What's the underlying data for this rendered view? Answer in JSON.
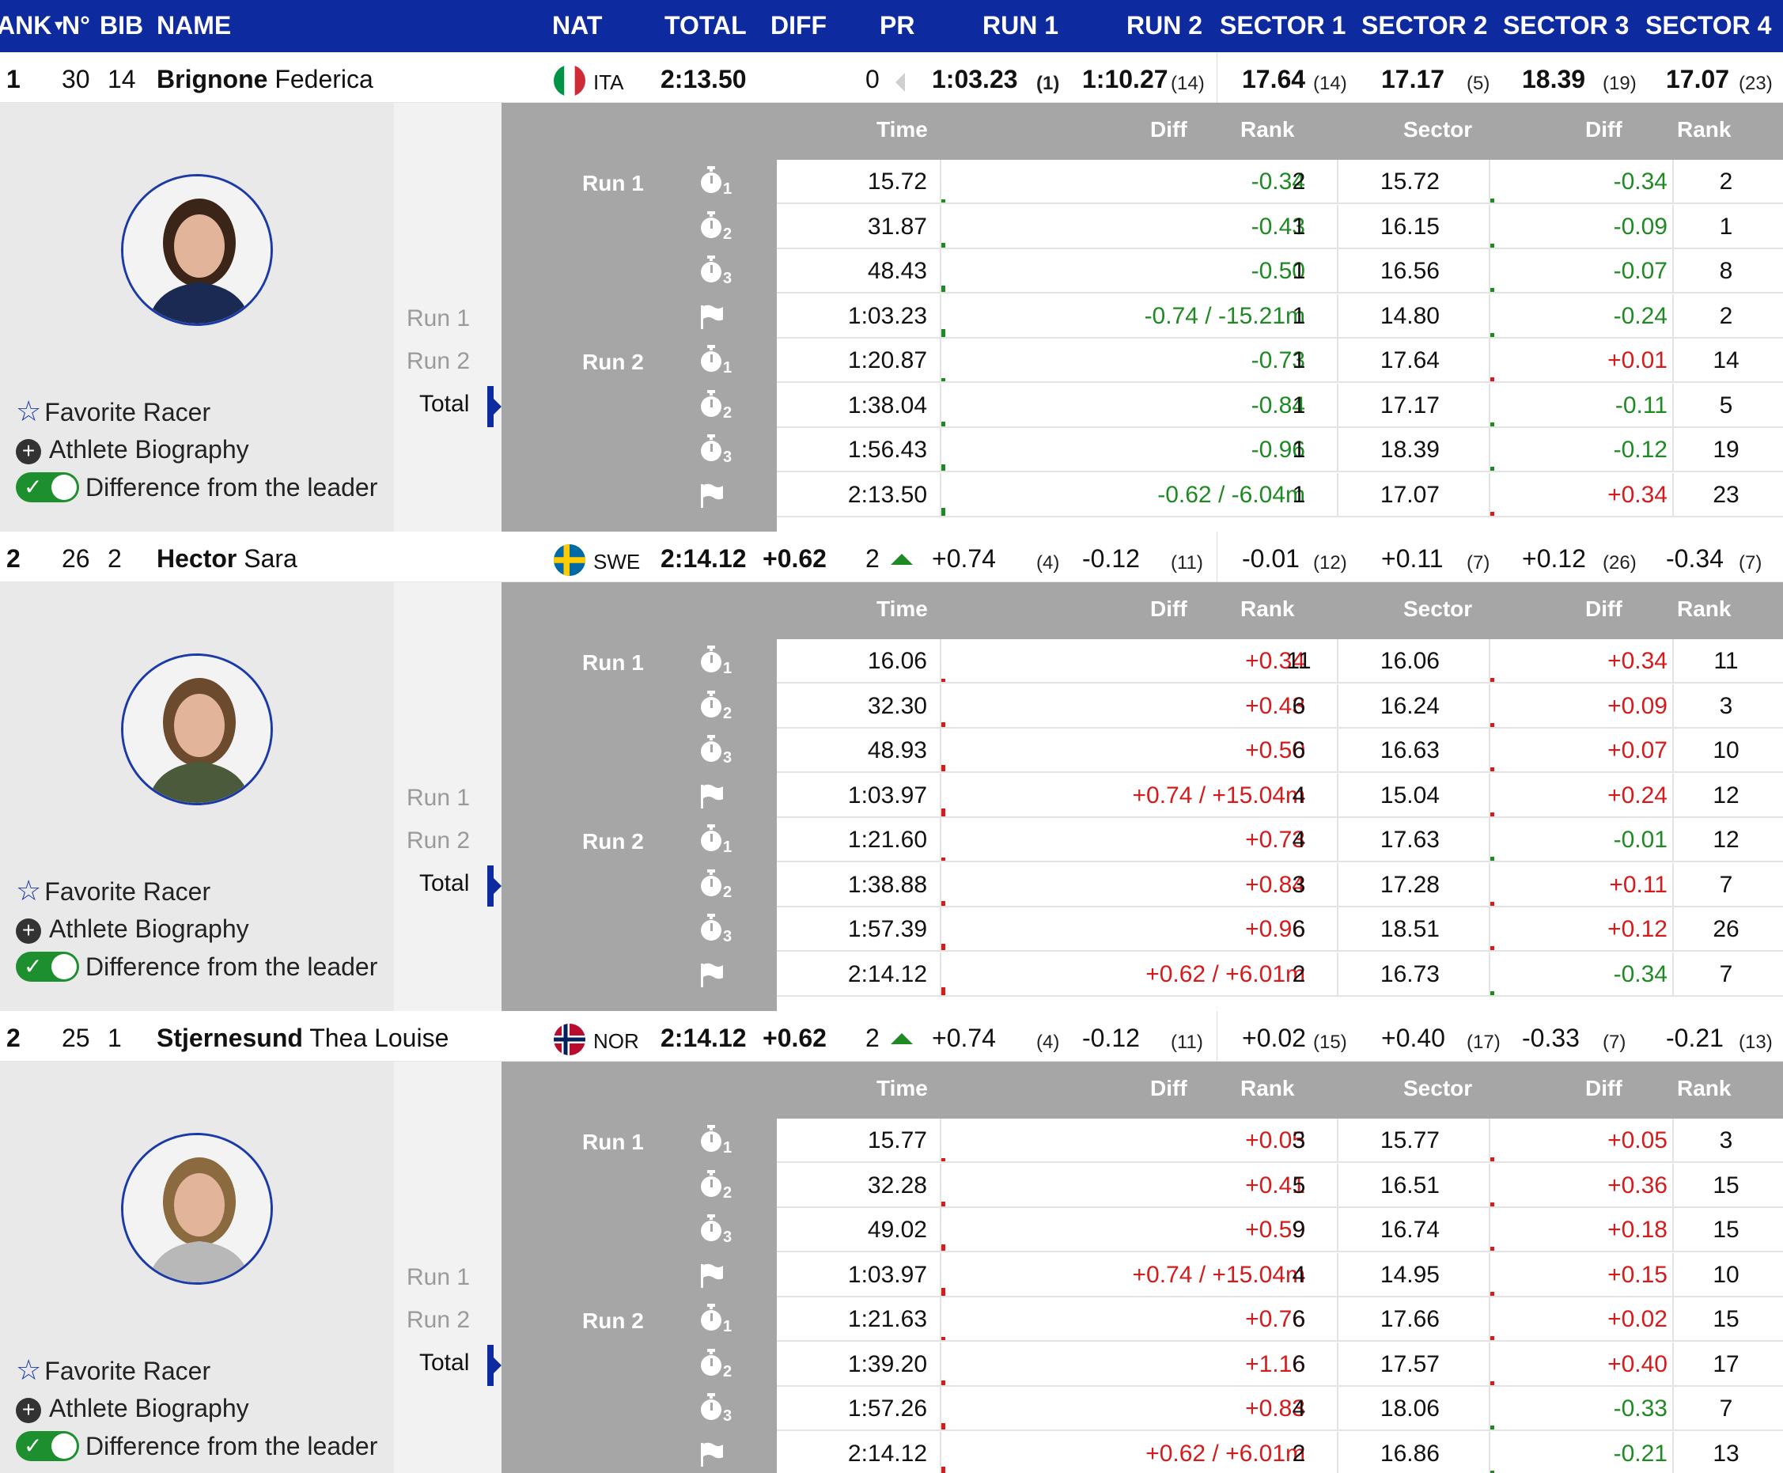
{
  "header": {
    "rank": "ANK",
    "rank_arrow": "▼",
    "no": "N°",
    "bib": "BIB",
    "name": "NAME",
    "nat": "NAT",
    "total": "TOTAL",
    "diff": "DIFF",
    "pr": "PR",
    "run1": "RUN 1",
    "run2": "RUN 2",
    "sector1": "SECTOR 1",
    "sector2": "SECTOR 2",
    "sector3": "SECTOR 3",
    "sector4": "SECTOR 4"
  },
  "labels": {
    "favorite": "Favorite Racer",
    "biography": "Athlete Biography",
    "difference": "Difference from the leader",
    "nav_run1": "Run 1",
    "nav_run2": "Run 2",
    "nav_total": "Total",
    "col_time": "Time",
    "col_diff": "Diff",
    "col_rank": "Rank",
    "col_sector": "Sector",
    "col_sdiff": "Diff",
    "col_srank": "Rank",
    "run1": "Run 1",
    "run2": "Run 2",
    "int1": "1",
    "int2": "2",
    "int3": "3"
  },
  "colors": {
    "header_bg": "#0d2a9e",
    "negative": "#1f8a23",
    "positive": "#d51b1b",
    "toggle_on": "#1d8f2f"
  },
  "racers": [
    {
      "rank": "1",
      "no": "30",
      "bib": "14",
      "last": "Brignone",
      "first": "Federica",
      "nat": "ITA",
      "flag": "ita-flag",
      "total": "2:13.50",
      "diff": "",
      "pr": "0",
      "pr_trend": "none",
      "run1": "1:03.23",
      "run1_rank": "(1)",
      "run2": "1:10.27",
      "run2_rank": "(14)",
      "summary_bold": true,
      "sectors": [
        {
          "v": "17.64",
          "r": "(14)"
        },
        {
          "v": "17.17",
          "r": "(5)"
        },
        {
          "v": "18.39",
          "r": "(19)"
        },
        {
          "v": "17.07",
          "r": "(23)"
        }
      ],
      "rows": [
        {
          "time": "15.72",
          "diff": "-0.34",
          "ds": "neg",
          "rank": "2",
          "sector": "15.72",
          "sdiff": "-0.34",
          "sds": "neg",
          "srank": "2"
        },
        {
          "time": "31.87",
          "diff": "-0.43",
          "ds": "neg",
          "rank": "1",
          "sector": "16.15",
          "sdiff": "-0.09",
          "sds": "neg",
          "srank": "1"
        },
        {
          "time": "48.43",
          "diff": "-0.50",
          "ds": "neg",
          "rank": "1",
          "sector": "16.56",
          "sdiff": "-0.07",
          "sds": "neg",
          "srank": "8"
        },
        {
          "time": "1:03.23",
          "diff": "-0.74 / -15.21m",
          "ds": "neg",
          "rank": "1",
          "sector": "14.80",
          "sdiff": "-0.24",
          "sds": "neg",
          "srank": "2"
        },
        {
          "time": "1:20.87",
          "diff": "-0.73",
          "ds": "neg",
          "rank": "1",
          "sector": "17.64",
          "sdiff": "+0.01",
          "sds": "pos",
          "srank": "14"
        },
        {
          "time": "1:38.04",
          "diff": "-0.84",
          "ds": "neg",
          "rank": "1",
          "sector": "17.17",
          "sdiff": "-0.11",
          "sds": "neg",
          "srank": "5"
        },
        {
          "time": "1:56.43",
          "diff": "-0.96",
          "ds": "neg",
          "rank": "1",
          "sector": "18.39",
          "sdiff": "-0.12",
          "sds": "neg",
          "srank": "19"
        },
        {
          "time": "2:13.50",
          "diff": "-0.62 / -6.04m",
          "ds": "neg",
          "rank": "1",
          "sector": "17.07",
          "sdiff": "+0.34",
          "sds": "pos",
          "srank": "23"
        }
      ]
    },
    {
      "rank": "2",
      "no": "26",
      "bib": "2",
      "last": "Hector",
      "first": "Sara",
      "nat": "SWE",
      "flag": "swe-flag",
      "total": "2:14.12",
      "diff": "+0.62",
      "pr": "2",
      "pr_trend": "up",
      "run1": "+0.74",
      "run1_rank": "(4)",
      "run2": "-0.12",
      "run2_rank": "(11)",
      "summary_bold": false,
      "sectors": [
        {
          "v": "-0.01",
          "r": "(12)"
        },
        {
          "v": "+0.11",
          "r": "(7)"
        },
        {
          "v": "+0.12",
          "r": "(26)"
        },
        {
          "v": "-0.34",
          "r": "(7)"
        }
      ],
      "rows": [
        {
          "time": "16.06",
          "diff": "+0.34",
          "ds": "pos",
          "rank": "11",
          "sector": "16.06",
          "sdiff": "+0.34",
          "sds": "pos",
          "srank": "11"
        },
        {
          "time": "32.30",
          "diff": "+0.43",
          "ds": "pos",
          "rank": "6",
          "sector": "16.24",
          "sdiff": "+0.09",
          "sds": "pos",
          "srank": "3"
        },
        {
          "time": "48.93",
          "diff": "+0.50",
          "ds": "pos",
          "rank": "6",
          "sector": "16.63",
          "sdiff": "+0.07",
          "sds": "pos",
          "srank": "10"
        },
        {
          "time": "1:03.97",
          "diff": "+0.74 / +15.04m",
          "ds": "pos",
          "rank": "4",
          "sector": "15.04",
          "sdiff": "+0.24",
          "sds": "pos",
          "srank": "12"
        },
        {
          "time": "1:21.60",
          "diff": "+0.73",
          "ds": "pos",
          "rank": "4",
          "sector": "17.63",
          "sdiff": "-0.01",
          "sds": "neg",
          "srank": "12"
        },
        {
          "time": "1:38.88",
          "diff": "+0.84",
          "ds": "pos",
          "rank": "3",
          "sector": "17.28",
          "sdiff": "+0.11",
          "sds": "pos",
          "srank": "7"
        },
        {
          "time": "1:57.39",
          "diff": "+0.96",
          "ds": "pos",
          "rank": "6",
          "sector": "18.51",
          "sdiff": "+0.12",
          "sds": "pos",
          "srank": "26"
        },
        {
          "time": "2:14.12",
          "diff": "+0.62 / +6.01m",
          "ds": "pos",
          "rank": "2",
          "sector": "16.73",
          "sdiff": "-0.34",
          "sds": "neg",
          "srank": "7"
        }
      ]
    },
    {
      "rank": "2",
      "no": "25",
      "bib": "1",
      "last": "Stjernesund",
      "first": "Thea Louise",
      "nat": "NOR",
      "flag": "nor-flag",
      "total": "2:14.12",
      "diff": "+0.62",
      "pr": "2",
      "pr_trend": "up",
      "run1": "+0.74",
      "run1_rank": "(4)",
      "run2": "-0.12",
      "run2_rank": "(11)",
      "summary_bold": false,
      "sectors": [
        {
          "v": "+0.02",
          "r": "(15)"
        },
        {
          "v": "+0.40",
          "r": "(17)"
        },
        {
          "v": "-0.33",
          "r": "(7)"
        },
        {
          "v": "-0.21",
          "r": "(13)"
        }
      ],
      "rows": [
        {
          "time": "15.77",
          "diff": "+0.05",
          "ds": "pos",
          "rank": "3",
          "sector": "15.77",
          "sdiff": "+0.05",
          "sds": "pos",
          "srank": "3"
        },
        {
          "time": "32.28",
          "diff": "+0.41",
          "ds": "pos",
          "rank": "5",
          "sector": "16.51",
          "sdiff": "+0.36",
          "sds": "pos",
          "srank": "15"
        },
        {
          "time": "49.02",
          "diff": "+0.59",
          "ds": "pos",
          "rank": "9",
          "sector": "16.74",
          "sdiff": "+0.18",
          "sds": "pos",
          "srank": "15"
        },
        {
          "time": "1:03.97",
          "diff": "+0.74 / +15.04m",
          "ds": "pos",
          "rank": "4",
          "sector": "14.95",
          "sdiff": "+0.15",
          "sds": "pos",
          "srank": "10"
        },
        {
          "time": "1:21.63",
          "diff": "+0.76",
          "ds": "pos",
          "rank": "6",
          "sector": "17.66",
          "sdiff": "+0.02",
          "sds": "pos",
          "srank": "15"
        },
        {
          "time": "1:39.20",
          "diff": "+1.16",
          "ds": "pos",
          "rank": "6",
          "sector": "17.57",
          "sdiff": "+0.40",
          "sds": "pos",
          "srank": "17"
        },
        {
          "time": "1:57.26",
          "diff": "+0.83",
          "ds": "pos",
          "rank": "4",
          "sector": "18.06",
          "sdiff": "-0.33",
          "sds": "neg",
          "srank": "7"
        },
        {
          "time": "2:14.12",
          "diff": "+0.62 / +6.01m",
          "ds": "pos",
          "rank": "2",
          "sector": "16.86",
          "sdiff": "-0.21",
          "sds": "neg",
          "srank": "13"
        }
      ]
    }
  ]
}
